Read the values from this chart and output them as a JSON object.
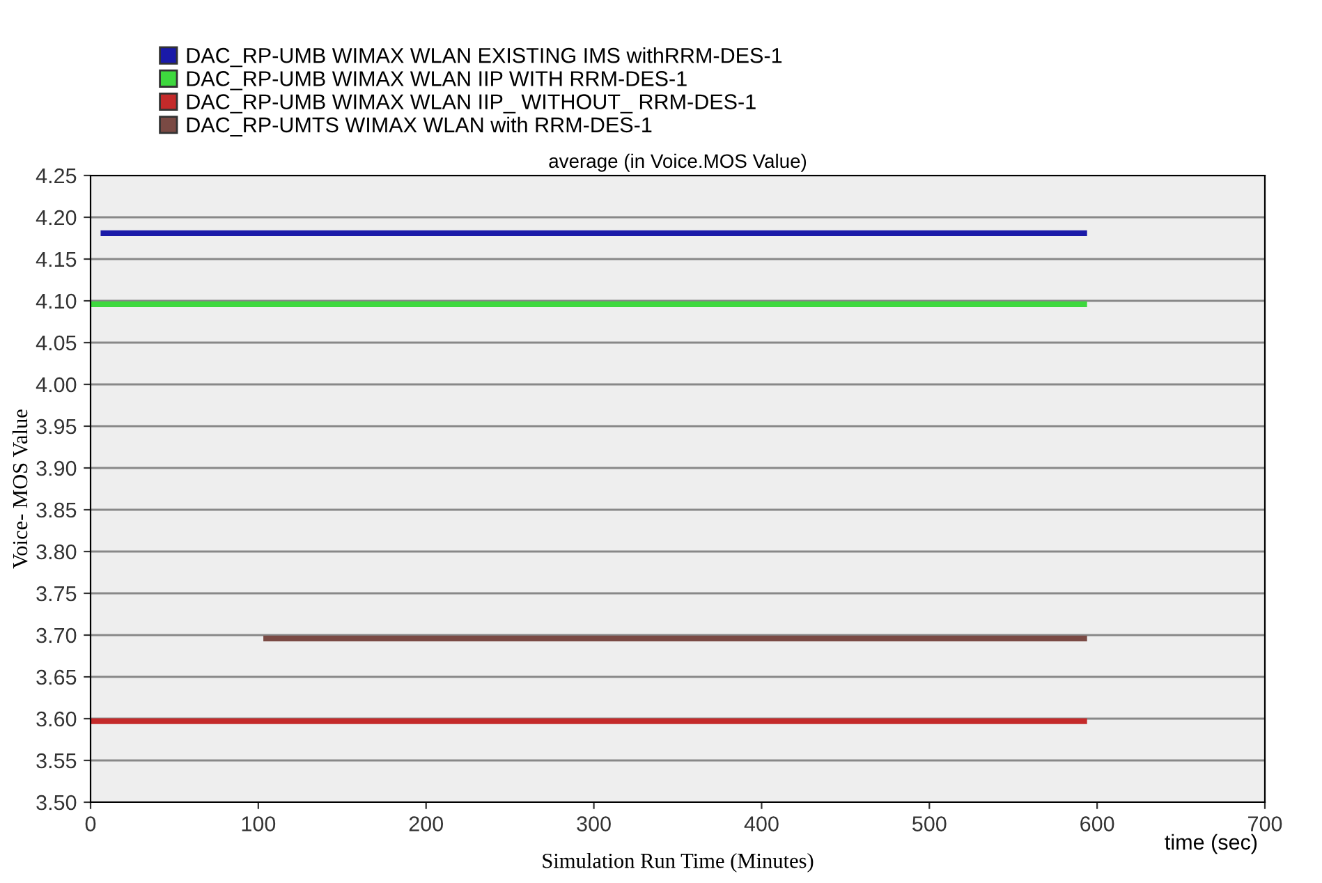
{
  "chart_data": {
    "type": "line",
    "title": "average (in Voice.MOS Value)",
    "xlabel": "Simulation Run Time (Minutes)",
    "ylabel": "Voice- MOS Value",
    "annotations": [
      "time (sec)"
    ],
    "series": [
      {
        "name": "DAC_RP-UMB WIMAX WLAN EXISTING IMS withRRM-DES-1",
        "color": "#1a1aa8",
        "x": [
          6,
          594
        ],
        "values": [
          4.181,
          4.181
        ]
      },
      {
        "name": "DAC_RP-UMB WIMAX WLAN IIP WITH RRM-DES-1",
        "color": "#3ed83e",
        "x": [
          0,
          594
        ],
        "values": [
          4.096,
          4.096
        ]
      },
      {
        "name": "DAC_RP-UMB WIMAX WLAN IIP_ WITHOUT_ RRM-DES-1",
        "color": "#c42a2a",
        "x": [
          0,
          594
        ],
        "values": [
          3.597,
          3.597
        ]
      },
      {
        "name": "DAC_RP-UMTS WIMAX WLAN with RRM-DES-1",
        "color": "#7a4a44",
        "x": [
          103,
          594
        ],
        "values": [
          3.696,
          3.696
        ]
      }
    ],
    "xlim": [
      0,
      700
    ],
    "xticks": [
      0,
      100,
      200,
      300,
      400,
      500,
      600,
      700
    ],
    "ylim": [
      3.5,
      4.25
    ],
    "yticks": [
      {
        "value": 3.5,
        "label": "3.50"
      },
      {
        "value": 3.55,
        "label": "3.55"
      },
      {
        "value": 3.6,
        "label": "3.60"
      },
      {
        "value": 3.65,
        "label": "3.65"
      },
      {
        "value": 3.7,
        "label": "3.70"
      },
      {
        "value": 3.75,
        "label": "3.75"
      },
      {
        "value": 3.8,
        "label": "3.80"
      },
      {
        "value": 3.85,
        "label": "3.85"
      },
      {
        "value": 3.9,
        "label": "3.90"
      },
      {
        "value": 3.95,
        "label": "3.95"
      },
      {
        "value": 4.0,
        "label": "4.00"
      },
      {
        "value": 4.05,
        "label": "4.05"
      },
      {
        "value": 4.1,
        "label": "4.10"
      },
      {
        "value": 4.15,
        "label": "4.15"
      },
      {
        "value": 4.2,
        "label": "4.20"
      },
      {
        "value": 4.25,
        "label": "4.25"
      }
    ],
    "grid": "y",
    "legend": "top left",
    "marker": "none",
    "line_style": "solid"
  }
}
